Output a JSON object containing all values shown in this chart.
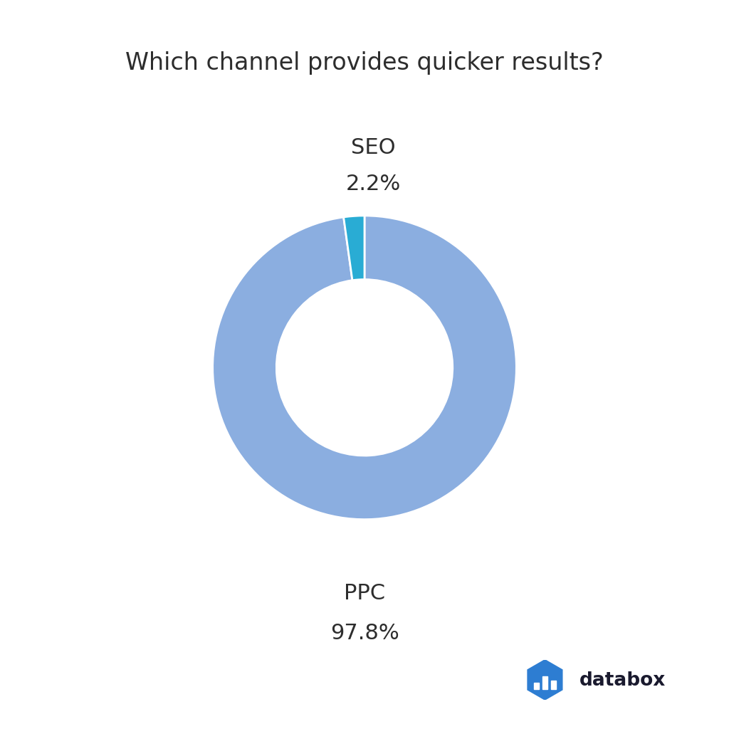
{
  "title": "Which channel provides quicker results?",
  "title_fontsize": 24,
  "title_color": "#2d2d2d",
  "slices": [
    "PPC",
    "SEO"
  ],
  "values": [
    97.8,
    2.2
  ],
  "colors": [
    "#8baee0",
    "#29acd4"
  ],
  "labels": [
    "PPC",
    "SEO"
  ],
  "percentages": [
    "97.8%",
    "2.2%"
  ],
  "label_fontsize": 22,
  "pct_fontsize": 22,
  "label_color": "#2d2d2d",
  "bg_color": "#ffffff",
  "wedge_edge_color": "#ffffff",
  "donut_width": 0.42,
  "databox_text": "databox",
  "databox_text_color": "#1a1a2e",
  "databox_icon_color": "#2d7dd2"
}
